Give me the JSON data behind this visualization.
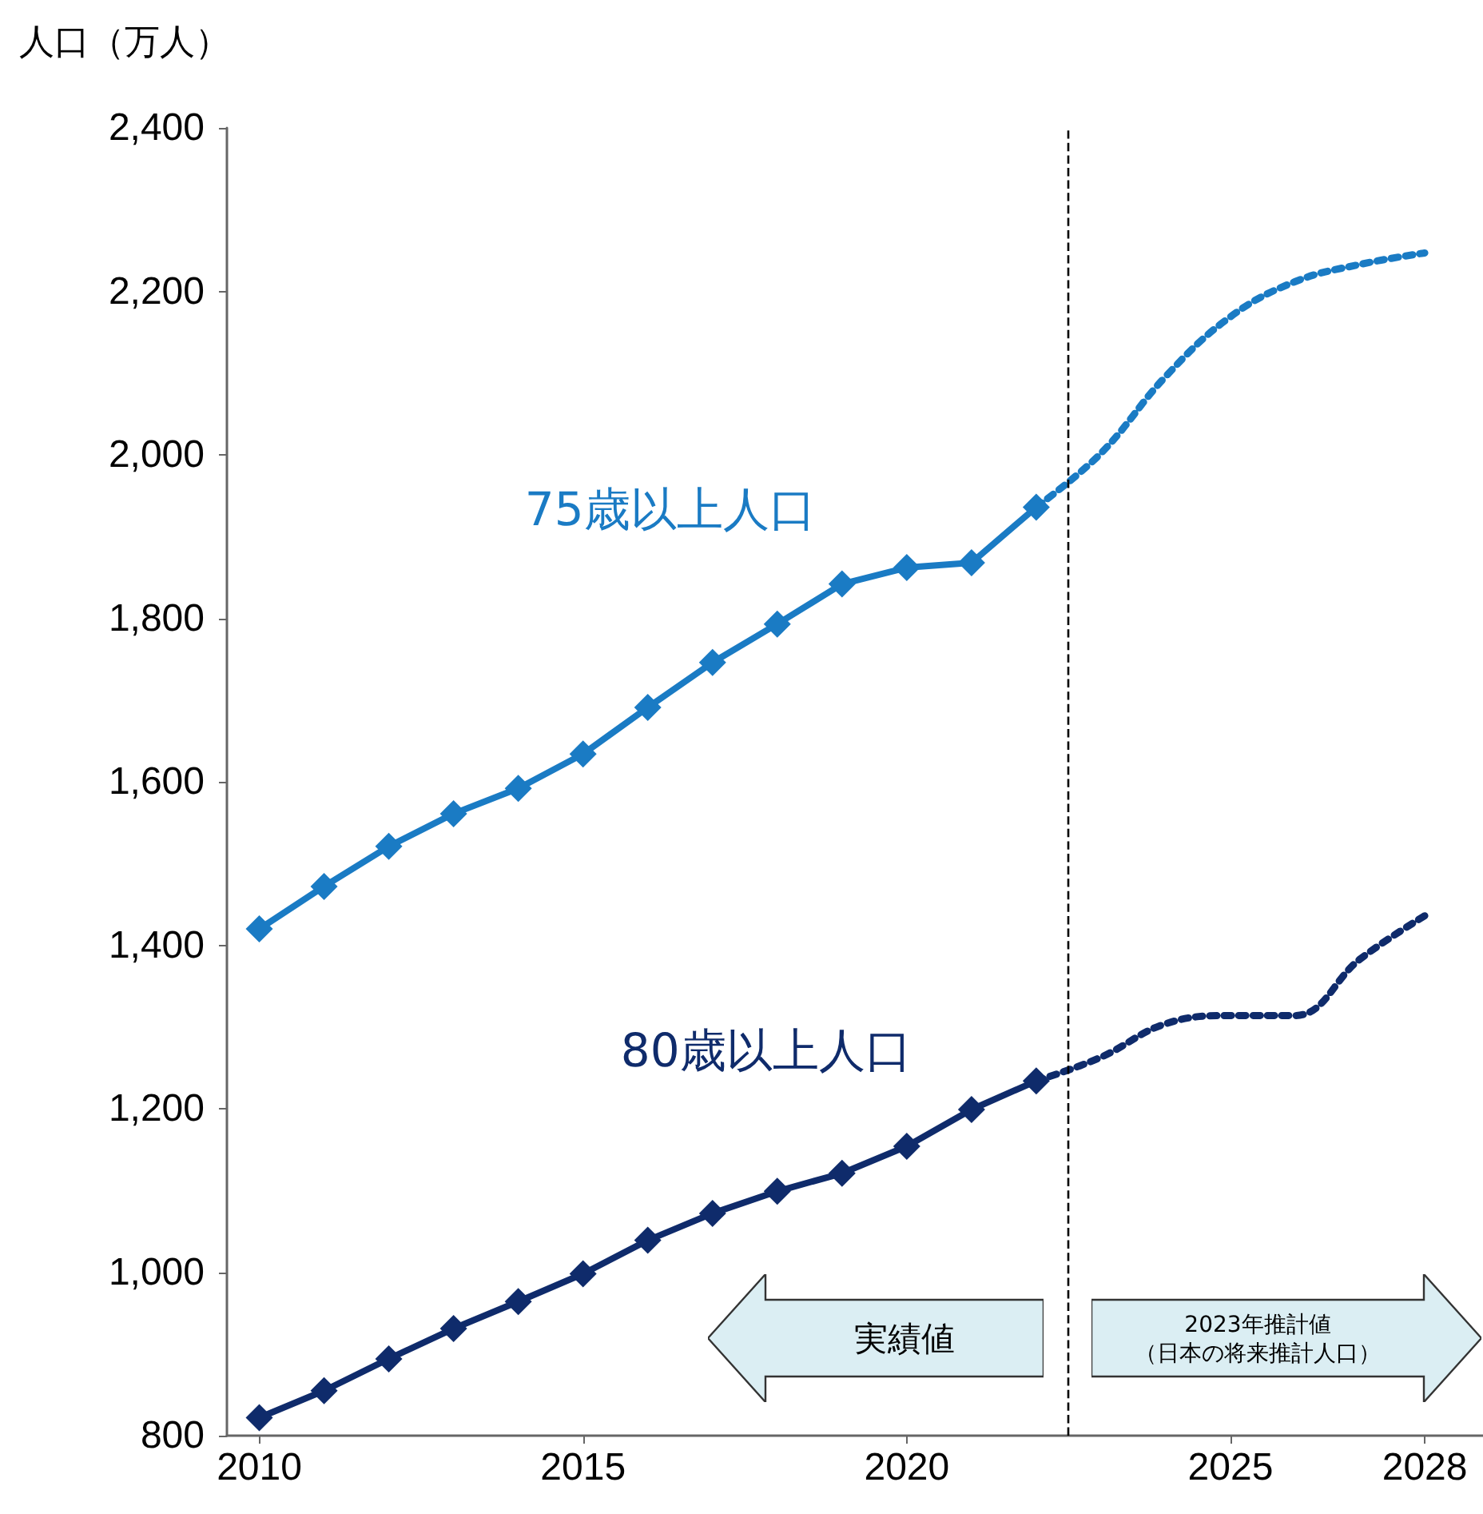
{
  "chart_data": {
    "type": "line",
    "ylabel": "人口（万人）",
    "xlim": [
      2009.5,
      2028.9
    ],
    "xticks": [
      2010,
      2015,
      2020,
      2025,
      2028
    ],
    "ylim": [
      800,
      2400
    ],
    "yticks": [
      800,
      {
        "value": 1000,
        "label": "1,000"
      },
      {
        "value": 1200,
        "label": "1,200"
      },
      {
        "value": 1400,
        "label": "1,400"
      },
      {
        "value": 1600,
        "label": "1,600"
      },
      {
        "value": 1800,
        "label": "1,800"
      },
      {
        "value": 2000,
        "label": "2,000"
      },
      {
        "value": 2200,
        "label": "2,200"
      },
      {
        "value": 2400,
        "label": "2,400"
      }
    ],
    "grid": false,
    "legend": false,
    "series": [
      {
        "name": "75歳以上人口",
        "color": "#1a7bc4",
        "marker": "diamond",
        "line_style": "solid",
        "x": [
          2010,
          2011,
          2012,
          2013,
          2014,
          2015,
          2016,
          2017,
          2018,
          2019,
          2020,
          2021,
          2022
        ],
        "values": [
          1420,
          1472,
          1521,
          1561,
          1592,
          1634,
          1691,
          1746,
          1793,
          1842,
          1862,
          1868,
          1936
        ]
      },
      {
        "color": "#1a7bc4",
        "marker": "none",
        "line_style": "dotted",
        "x": [
          2022,
          2023,
          2024,
          2025,
          2026,
          2027,
          2028
        ],
        "values": [
          1936,
          2002,
          2096,
          2169,
          2212,
          2233,
          2247
        ]
      },
      {
        "name": "80歳以上人口",
        "color": "#0f2b6b",
        "marker": "diamond",
        "line_style": "solid",
        "x": [
          2010,
          2011,
          2012,
          2013,
          2014,
          2015,
          2016,
          2017,
          2018,
          2019,
          2020,
          2021,
          2022
        ],
        "values": [
          822,
          855,
          894,
          931,
          964,
          998,
          1039,
          1072,
          1099,
          1121,
          1154,
          1199,
          1234
        ]
      },
      {
        "color": "#0f2b6b",
        "marker": "none",
        "line_style": "dotted",
        "x": [
          2022,
          2023,
          2024,
          2025,
          2026,
          2027,
          2028
        ],
        "values": [
          1234,
          1263,
          1304,
          1314,
          1314,
          1383,
          1436
        ]
      }
    ],
    "ref_lines": [
      {
        "axis": "x",
        "value": 2022.5,
        "color": "#000000",
        "line_style": "dashed"
      }
    ],
    "annotations": [
      "実績値",
      "2023年推計値",
      "（日本の将来推計人口）"
    ]
  }
}
